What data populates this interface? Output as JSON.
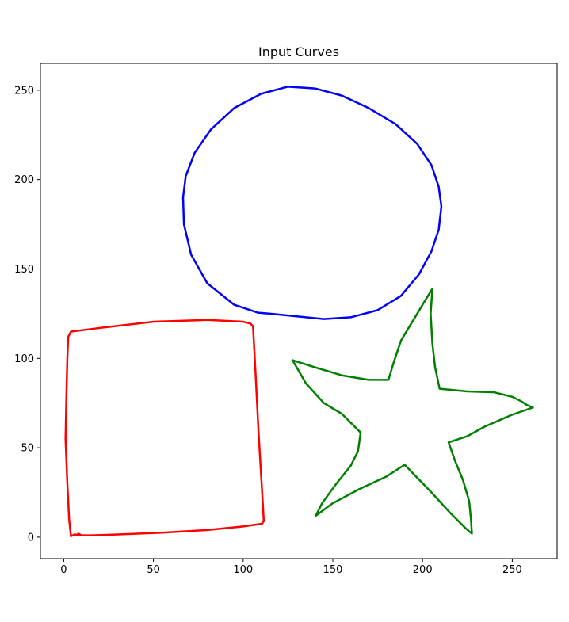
{
  "chart_data": {
    "type": "line",
    "title": "Input Curves",
    "xlabel": "",
    "ylabel": "",
    "xlim": [
      -13,
      275
    ],
    "ylim": [
      -12,
      265
    ],
    "xticks": [
      0,
      50,
      100,
      150,
      200,
      250
    ],
    "yticks": [
      0,
      50,
      100,
      150,
      200,
      250
    ],
    "grid": false,
    "series": [
      {
        "color": "#ff0000",
        "closed": false,
        "points": [
          [
            9,
            1
          ],
          [
            6,
            1.5
          ],
          [
            4,
            0.5
          ],
          [
            3,
            10
          ],
          [
            2,
            30
          ],
          [
            1,
            55
          ],
          [
            1.5,
            80
          ],
          [
            2,
            100
          ],
          [
            2.5,
            112
          ],
          [
            4,
            115
          ],
          [
            20,
            117
          ],
          [
            50,
            120.5
          ],
          [
            80,
            121.5
          ],
          [
            100,
            120.5
          ],
          [
            104,
            119.5
          ],
          [
            105.5,
            118
          ],
          [
            107,
            90
          ],
          [
            108.5,
            60
          ],
          [
            110,
            35
          ],
          [
            111,
            18
          ],
          [
            111.5,
            9
          ],
          [
            110.5,
            7.5
          ],
          [
            100,
            6
          ],
          [
            80,
            4
          ],
          [
            55,
            2.5
          ],
          [
            30,
            1.5
          ],
          [
            15,
            1
          ],
          [
            10,
            1
          ],
          [
            8,
            2
          ]
        ]
      },
      {
        "color": "#0000ff",
        "closed": false,
        "points": [
          [
            108.5,
            125.5
          ],
          [
            95,
            130
          ],
          [
            80,
            142
          ],
          [
            71,
            158
          ],
          [
            67,
            175
          ],
          [
            66.5,
            190
          ],
          [
            68,
            202
          ],
          [
            73,
            215
          ],
          [
            82,
            228
          ],
          [
            95,
            240
          ],
          [
            110,
            248
          ],
          [
            125,
            252
          ],
          [
            140,
            251
          ],
          [
            155,
            247
          ],
          [
            170,
            240
          ],
          [
            185,
            231
          ],
          [
            197,
            220
          ],
          [
            205,
            208
          ],
          [
            209,
            196
          ],
          [
            210.5,
            185
          ],
          [
            209,
            172
          ],
          [
            205,
            160
          ],
          [
            198,
            147
          ],
          [
            188,
            135
          ],
          [
            175,
            127
          ],
          [
            160,
            123
          ],
          [
            145,
            122
          ],
          [
            130,
            123.5
          ],
          [
            115,
            125
          ],
          [
            109,
            125.5
          ]
        ]
      },
      {
        "color": "#008000",
        "closed": true,
        "points": [
          [
            205.5,
            139
          ],
          [
            204.5,
            125
          ],
          [
            205.5,
            108
          ],
          [
            207,
            95
          ],
          [
            209.5,
            83
          ],
          [
            225,
            81.5
          ],
          [
            240,
            81
          ],
          [
            250,
            78.5
          ],
          [
            255,
            76
          ],
          [
            258,
            74
          ],
          [
            261.5,
            72.5
          ],
          [
            250,
            68.5
          ],
          [
            235,
            62
          ],
          [
            225,
            56.5
          ],
          [
            214.5,
            53
          ],
          [
            218,
            43
          ],
          [
            222.5,
            32
          ],
          [
            226,
            20
          ],
          [
            227,
            10
          ],
          [
            227.5,
            2
          ],
          [
            224,
            5
          ],
          [
            215,
            14
          ],
          [
            205,
            25
          ],
          [
            190,
            40.5
          ],
          [
            180,
            34
          ],
          [
            165,
            27
          ],
          [
            150,
            19
          ],
          [
            140.5,
            12
          ],
          [
            144,
            19
          ],
          [
            152,
            30
          ],
          [
            160,
            40
          ],
          [
            164,
            48
          ],
          [
            165.5,
            58.5
          ],
          [
            158,
            66
          ],
          [
            155,
            69
          ],
          [
            145,
            75
          ],
          [
            135,
            86
          ],
          [
            127.5,
            99
          ],
          [
            140,
            95
          ],
          [
            155,
            90.5
          ],
          [
            170,
            88
          ],
          [
            181,
            88
          ],
          [
            184,
            98
          ],
          [
            188,
            110
          ],
          [
            194,
            120
          ],
          [
            200,
            130
          ],
          [
            205.5,
            139
          ]
        ]
      }
    ]
  }
}
